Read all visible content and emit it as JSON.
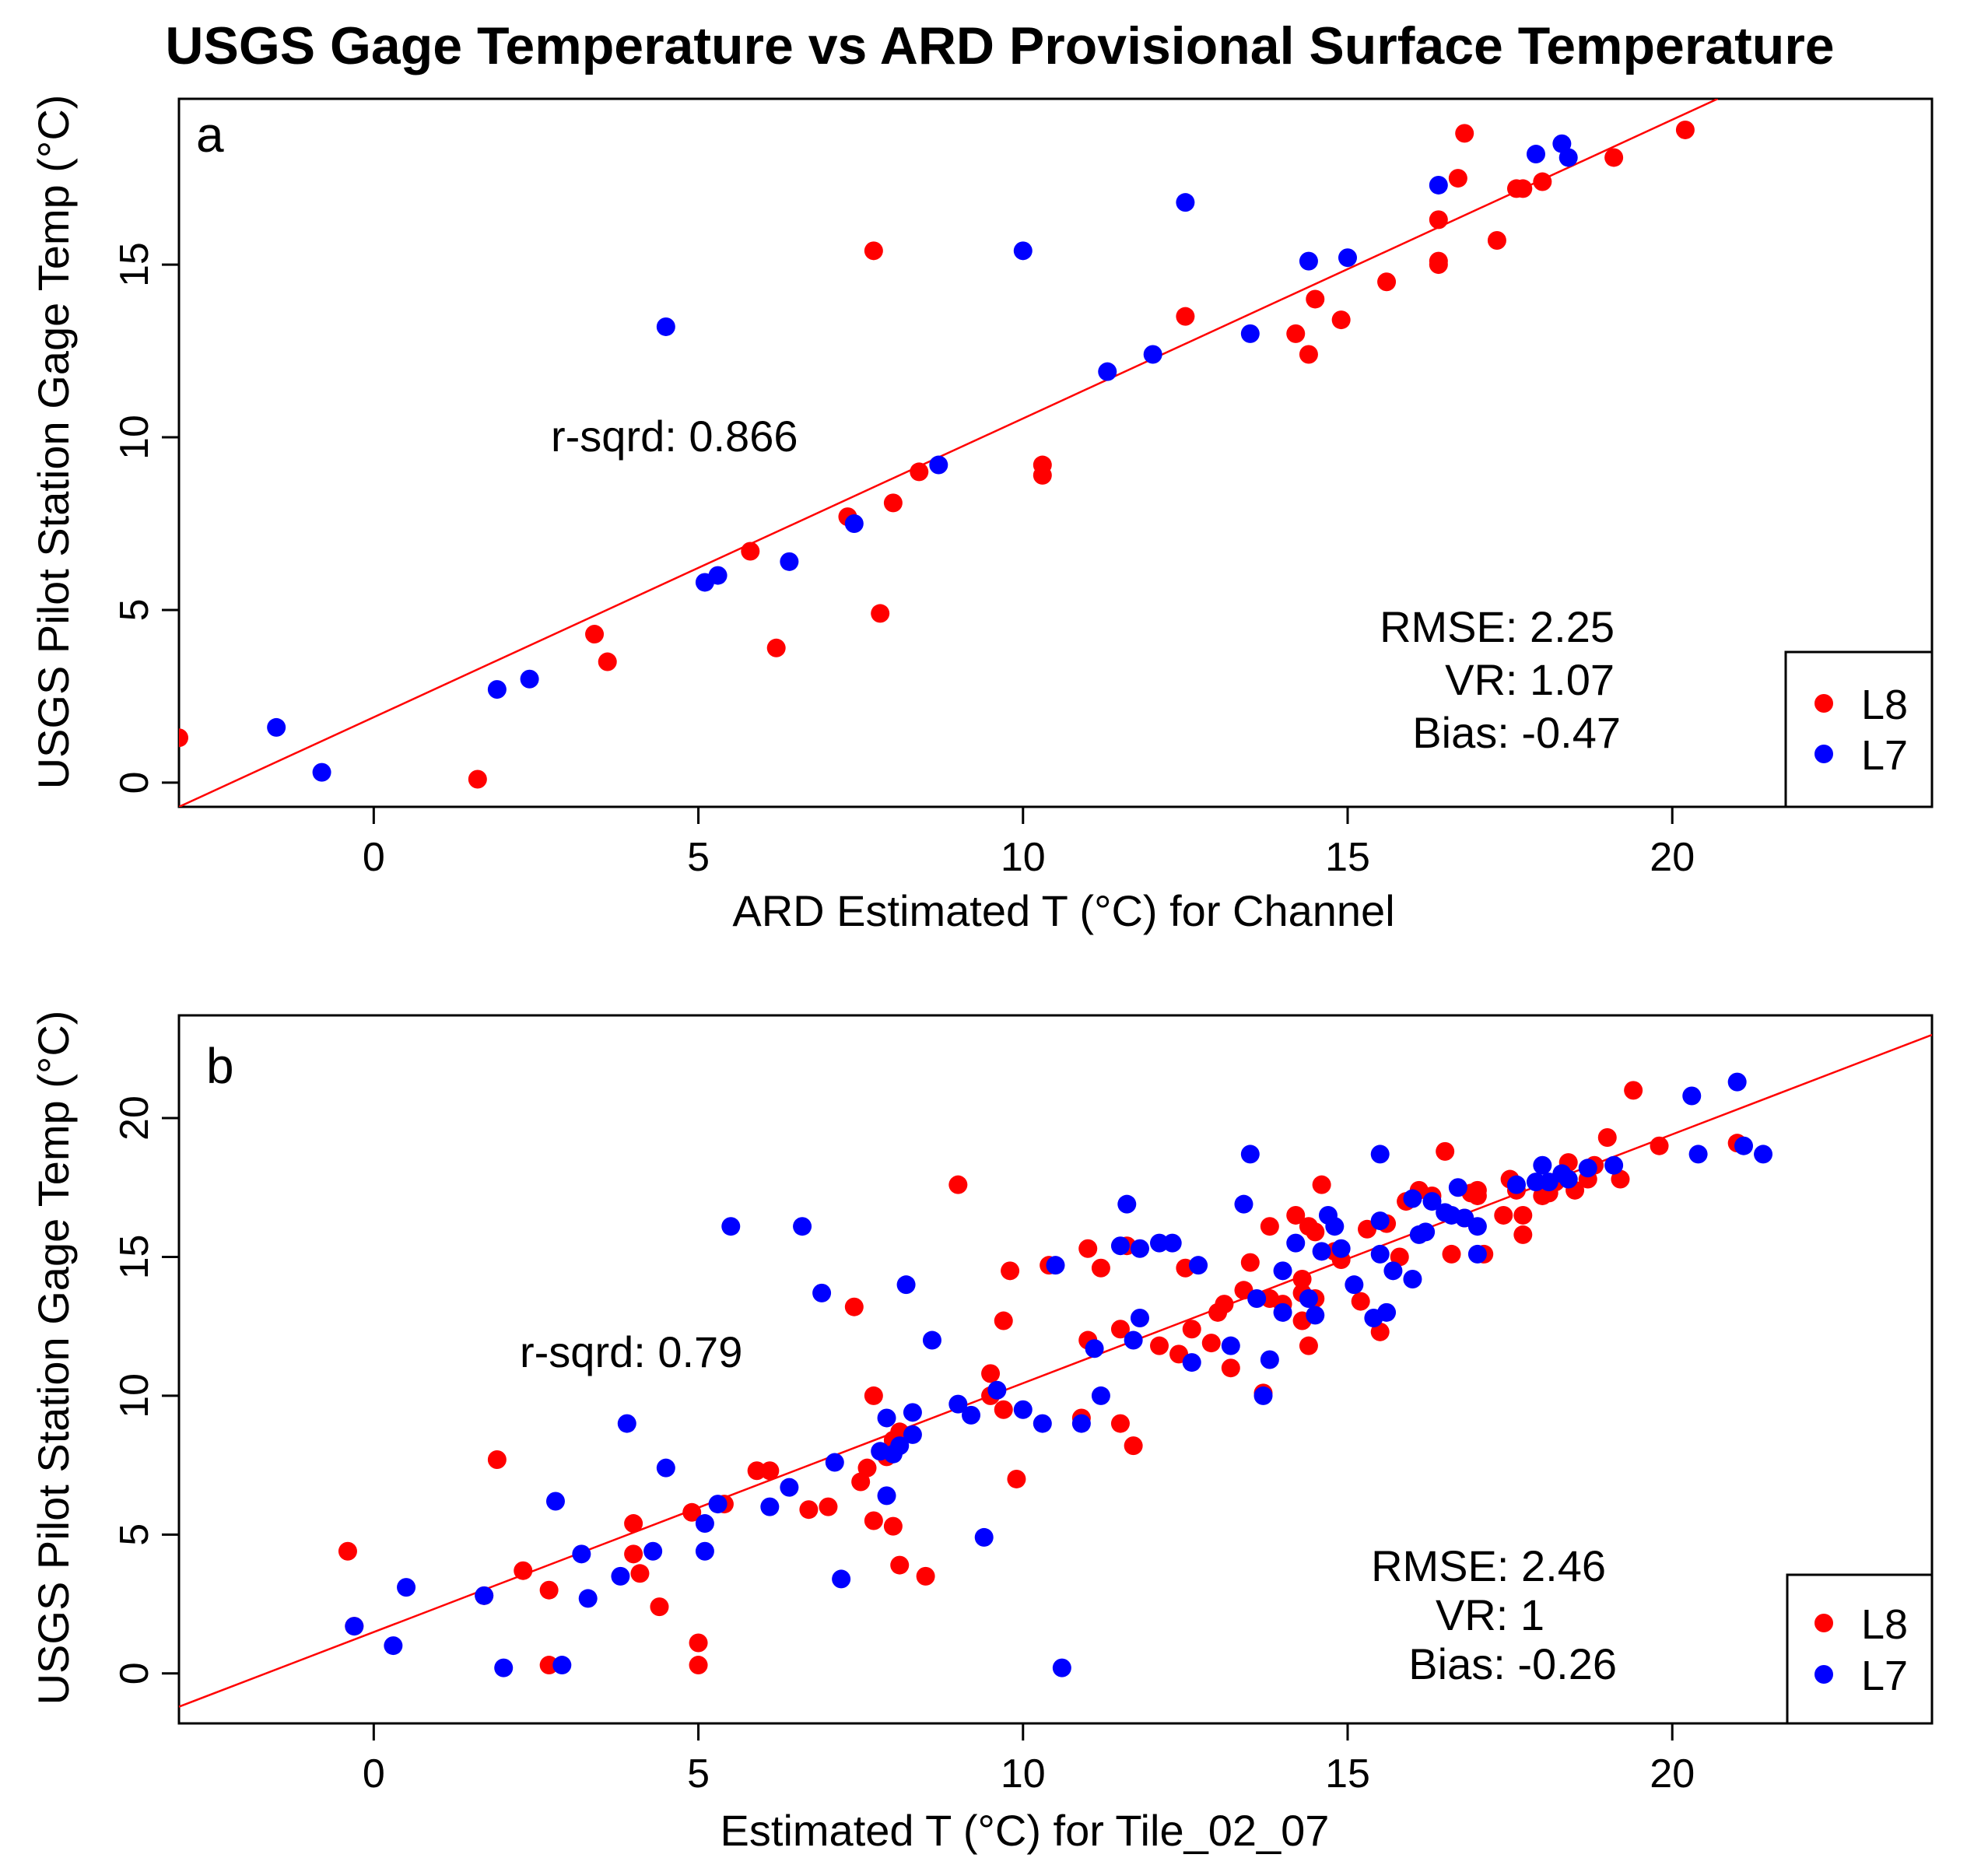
{
  "title": "USGS Gage Temperature vs ARD Provisional Surface Temperature",
  "colors": {
    "L8": "#ff0000",
    "L7": "#0000ff",
    "fit": "#ff0000"
  },
  "chart_data": [
    {
      "type": "scatter",
      "panel": "a",
      "xlabel": "ARD Estimated T (°C) for Channel",
      "ylabel": "USGS Pilot Station Gage Temp (°C)",
      "xlim": [
        -3,
        24
      ],
      "ylim": [
        -0.7,
        19.8
      ],
      "xticks": [
        0,
        5,
        10,
        15,
        20
      ],
      "yticks": [
        0,
        5,
        10,
        15
      ],
      "r_sqrd": "r-sqrd: 0.866",
      "stats": [
        "RMSE: 2.25",
        "VR: 1.07",
        "Bias: -0.47"
      ],
      "legend": [
        "L8",
        "L7"
      ],
      "fit": [
        [
          -3,
          -0.7
        ],
        [
          20.7,
          19.8
        ]
      ],
      "series": [
        {
          "name": "L8",
          "points": [
            [
              -3,
              1.3
            ],
            [
              1.6,
              0.1
            ],
            [
              3.4,
              4.3
            ],
            [
              3.6,
              3.5
            ],
            [
              5.8,
              6.7
            ],
            [
              6.2,
              3.9
            ],
            [
              7.3,
              7.7
            ],
            [
              7.7,
              15.4
            ],
            [
              7.8,
              4.9
            ],
            [
              8.0,
              8.1
            ],
            [
              8.4,
              9.0
            ],
            [
              10.3,
              9.2
            ],
            [
              10.3,
              8.9
            ],
            [
              12.5,
              13.5
            ],
            [
              14.2,
              13.0
            ],
            [
              14.4,
              12.4
            ],
            [
              14.5,
              14.0
            ],
            [
              14.9,
              13.4
            ],
            [
              15.6,
              14.5
            ],
            [
              16.4,
              15.0
            ],
            [
              16.4,
              15.1
            ],
            [
              16.4,
              16.3
            ],
            [
              16.7,
              17.5
            ],
            [
              16.8,
              18.8
            ],
            [
              17.3,
              15.7
            ],
            [
              17.6,
              17.2
            ],
            [
              17.7,
              17.2
            ],
            [
              18.0,
              17.4
            ],
            [
              19.1,
              18.1
            ],
            [
              20.2,
              18.9
            ]
          ]
        },
        {
          "name": "L7",
          "points": [
            [
              -1.5,
              1.6
            ],
            [
              -0.8,
              0.3
            ],
            [
              1.9,
              2.7
            ],
            [
              2.4,
              3.0
            ],
            [
              4.5,
              13.2
            ],
            [
              5.1,
              5.8
            ],
            [
              5.3,
              6.0
            ],
            [
              6.4,
              6.4
            ],
            [
              7.4,
              7.5
            ],
            [
              8.7,
              9.2
            ],
            [
              10.0,
              15.4
            ],
            [
              11.3,
              11.9
            ],
            [
              12.0,
              12.4
            ],
            [
              12.5,
              16.8
            ],
            [
              13.5,
              13.0
            ],
            [
              14.4,
              15.1
            ],
            [
              15.0,
              15.2
            ],
            [
              16.4,
              17.3
            ],
            [
              17.9,
              18.2
            ],
            [
              18.3,
              18.5
            ],
            [
              18.4,
              18.1
            ]
          ]
        }
      ]
    },
    {
      "type": "scatter",
      "panel": "b",
      "xlabel": "Estimated T (°C) for Tile_02_07",
      "ylabel": "USGS Pilot Station Gage Temp (°C)",
      "xlim": [
        -3,
        24
      ],
      "ylim": [
        -1.8,
        23.7
      ],
      "xticks": [
        0,
        5,
        10,
        15,
        20
      ],
      "yticks": [
        0,
        5,
        10,
        15,
        20
      ],
      "r_sqrd": "r-sqrd: 0.79",
      "stats": [
        "RMSE: 2.46",
        "VR: 1",
        "Bias: -0.26"
      ],
      "legend": [
        "L8",
        "L7"
      ],
      "fit": [
        [
          -3,
          -1.2
        ],
        [
          24,
          23.0
        ]
      ],
      "series": [
        {
          "name": "L8",
          "points": [
            [
              -0.4,
              4.4
            ],
            [
              -0.3,
              1.7
            ],
            [
              1.7,
              2.8
            ],
            [
              1.9,
              7.7
            ],
            [
              2.3,
              3.7
            ],
            [
              2.7,
              0.3
            ],
            [
              2.7,
              3.0
            ],
            [
              4.0,
              5.4
            ],
            [
              4.0,
              4.3
            ],
            [
              4.1,
              3.6
            ],
            [
              4.4,
              2.4
            ],
            [
              4.9,
              5.8
            ],
            [
              5.0,
              1.1
            ],
            [
              5.0,
              0.3
            ],
            [
              5.4,
              6.1
            ],
            [
              5.9,
              7.3
            ],
            [
              6.1,
              7.3
            ],
            [
              6.7,
              5.9
            ],
            [
              7.0,
              6.0
            ],
            [
              7.4,
              13.2
            ],
            [
              7.5,
              6.9
            ],
            [
              7.6,
              7.4
            ],
            [
              7.7,
              10.0
            ],
            [
              7.7,
              5.5
            ],
            [
              7.9,
              7.8
            ],
            [
              8.0,
              8.4
            ],
            [
              8.0,
              5.3
            ],
            [
              8.1,
              3.9
            ],
            [
              8.1,
              8.7
            ],
            [
              8.5,
              3.5
            ],
            [
              9.0,
              17.6
            ],
            [
              9.5,
              10.8
            ],
            [
              9.5,
              10.0
            ],
            [
              9.7,
              12.7
            ],
            [
              9.7,
              9.5
            ],
            [
              9.8,
              14.5
            ],
            [
              9.9,
              7.0
            ],
            [
              10.4,
              14.7
            ],
            [
              10.9,
              9.2
            ],
            [
              11.0,
              15.3
            ],
            [
              11.0,
              12.0
            ],
            [
              11.2,
              14.6
            ],
            [
              11.5,
              9.0
            ],
            [
              11.5,
              12.4
            ],
            [
              11.6,
              15.4
            ],
            [
              11.7,
              8.2
            ],
            [
              12.1,
              11.8
            ],
            [
              12.4,
              11.5
            ],
            [
              12.5,
              14.6
            ],
            [
              12.6,
              12.4
            ],
            [
              12.9,
              11.9
            ],
            [
              13.0,
              13.0
            ],
            [
              13.1,
              13.3
            ],
            [
              13.2,
              11.0
            ],
            [
              13.4,
              13.8
            ],
            [
              13.5,
              14.8
            ],
            [
              13.7,
              10.1
            ],
            [
              13.8,
              13.5
            ],
            [
              13.8,
              16.1
            ],
            [
              14.0,
              13.3
            ],
            [
              14.2,
              16.5
            ],
            [
              14.3,
              13.7
            ],
            [
              14.3,
              14.2
            ],
            [
              14.3,
              12.7
            ],
            [
              14.4,
              11.8
            ],
            [
              14.4,
              16.1
            ],
            [
              14.5,
              15.9
            ],
            [
              14.5,
              13.5
            ],
            [
              14.6,
              17.6
            ],
            [
              14.8,
              15.2
            ],
            [
              14.9,
              14.9
            ],
            [
              15.2,
              13.4
            ],
            [
              15.3,
              16.0
            ],
            [
              15.5,
              12.3
            ],
            [
              15.6,
              16.2
            ],
            [
              15.8,
              15.0
            ],
            [
              15.9,
              17.0
            ],
            [
              16.1,
              17.4
            ],
            [
              16.3,
              17.2
            ],
            [
              16.5,
              18.8
            ],
            [
              16.6,
              15.1
            ],
            [
              16.8,
              16.4
            ],
            [
              16.9,
              17.3
            ],
            [
              17.0,
              17.2
            ],
            [
              17.0,
              17.4
            ],
            [
              17.1,
              15.1
            ],
            [
              17.4,
              16.5
            ],
            [
              17.5,
              17.8
            ],
            [
              17.6,
              17.4
            ],
            [
              17.7,
              16.5
            ],
            [
              17.7,
              15.8
            ],
            [
              18.0,
              17.2
            ],
            [
              18.1,
              17.3
            ],
            [
              18.2,
              17.7
            ],
            [
              18.4,
              18.4
            ],
            [
              18.5,
              17.4
            ],
            [
              18.7,
              17.8
            ],
            [
              18.8,
              18.3
            ],
            [
              19.0,
              19.3
            ],
            [
              19.2,
              17.8
            ],
            [
              19.4,
              21.0
            ],
            [
              19.8,
              19.0
            ],
            [
              21.0,
              19.1
            ]
          ]
        },
        {
          "name": "L7",
          "points": [
            [
              -0.3,
              1.7
            ],
            [
              0.3,
              1.0
            ],
            [
              0.5,
              3.1
            ],
            [
              1.7,
              2.8
            ],
            [
              2.0,
              0.2
            ],
            [
              2.8,
              6.2
            ],
            [
              2.9,
              0.3
            ],
            [
              3.2,
              4.3
            ],
            [
              3.3,
              2.7
            ],
            [
              3.8,
              3.5
            ],
            [
              3.9,
              9.0
            ],
            [
              4.3,
              4.4
            ],
            [
              4.5,
              7.4
            ],
            [
              5.1,
              4.4
            ],
            [
              5.1,
              5.4
            ],
            [
              5.3,
              6.1
            ],
            [
              5.5,
              16.1
            ],
            [
              6.1,
              6.0
            ],
            [
              6.4,
              6.7
            ],
            [
              6.6,
              16.1
            ],
            [
              6.9,
              13.7
            ],
            [
              7.1,
              7.6
            ],
            [
              7.2,
              3.4
            ],
            [
              7.8,
              8.0
            ],
            [
              7.9,
              6.4
            ],
            [
              7.9,
              9.2
            ],
            [
              8.0,
              7.9
            ],
            [
              8.1,
              8.2
            ],
            [
              8.2,
              14.0
            ],
            [
              8.3,
              8.6
            ],
            [
              8.3,
              9.4
            ],
            [
              8.6,
              12.0
            ],
            [
              9.0,
              9.7
            ],
            [
              9.2,
              9.3
            ],
            [
              9.4,
              4.9
            ],
            [
              9.6,
              10.2
            ],
            [
              10.0,
              9.5
            ],
            [
              10.3,
              9.0
            ],
            [
              10.5,
              14.7
            ],
            [
              10.6,
              0.2
            ],
            [
              10.9,
              9.0
            ],
            [
              11.1,
              11.7
            ],
            [
              11.2,
              10.0
            ],
            [
              11.5,
              15.4
            ],
            [
              11.6,
              16.9
            ],
            [
              11.7,
              12.0
            ],
            [
              11.8,
              15.3
            ],
            [
              11.8,
              12.8
            ],
            [
              12.1,
              15.5
            ],
            [
              12.3,
              15.5
            ],
            [
              12.6,
              11.2
            ],
            [
              12.7,
              14.7
            ],
            [
              13.2,
              11.8
            ],
            [
              13.4,
              16.9
            ],
            [
              13.5,
              18.7
            ],
            [
              13.6,
              13.5
            ],
            [
              13.7,
              10.0
            ],
            [
              13.8,
              11.3
            ],
            [
              14.0,
              13.0
            ],
            [
              14.0,
              14.5
            ],
            [
              14.2,
              15.5
            ],
            [
              14.4,
              13.5
            ],
            [
              14.5,
              12.9
            ],
            [
              14.6,
              15.2
            ],
            [
              14.7,
              16.5
            ],
            [
              14.8,
              16.1
            ],
            [
              14.9,
              15.3
            ],
            [
              15.1,
              14.0
            ],
            [
              15.4,
              12.8
            ],
            [
              15.5,
              18.7
            ],
            [
              15.5,
              16.3
            ],
            [
              15.5,
              15.1
            ],
            [
              15.6,
              13.0
            ],
            [
              15.7,
              14.5
            ],
            [
              16.0,
              17.1
            ],
            [
              16.0,
              14.2
            ],
            [
              16.1,
              15.8
            ],
            [
              16.2,
              15.9
            ],
            [
              16.3,
              17.0
            ],
            [
              16.5,
              16.6
            ],
            [
              16.6,
              16.5
            ],
            [
              16.7,
              17.5
            ],
            [
              16.8,
              16.4
            ],
            [
              17.0,
              16.1
            ],
            [
              17.0,
              15.1
            ],
            [
              17.6,
              17.6
            ],
            [
              17.9,
              17.7
            ],
            [
              18.0,
              18.3
            ],
            [
              18.1,
              17.7
            ],
            [
              18.3,
              18.0
            ],
            [
              18.4,
              17.8
            ],
            [
              18.7,
              18.2
            ],
            [
              19.1,
              18.3
            ],
            [
              20.3,
              20.8
            ],
            [
              20.4,
              18.7
            ],
            [
              21.0,
              21.3
            ],
            [
              21.1,
              19.0
            ],
            [
              21.4,
              18.7
            ]
          ]
        }
      ]
    }
  ]
}
